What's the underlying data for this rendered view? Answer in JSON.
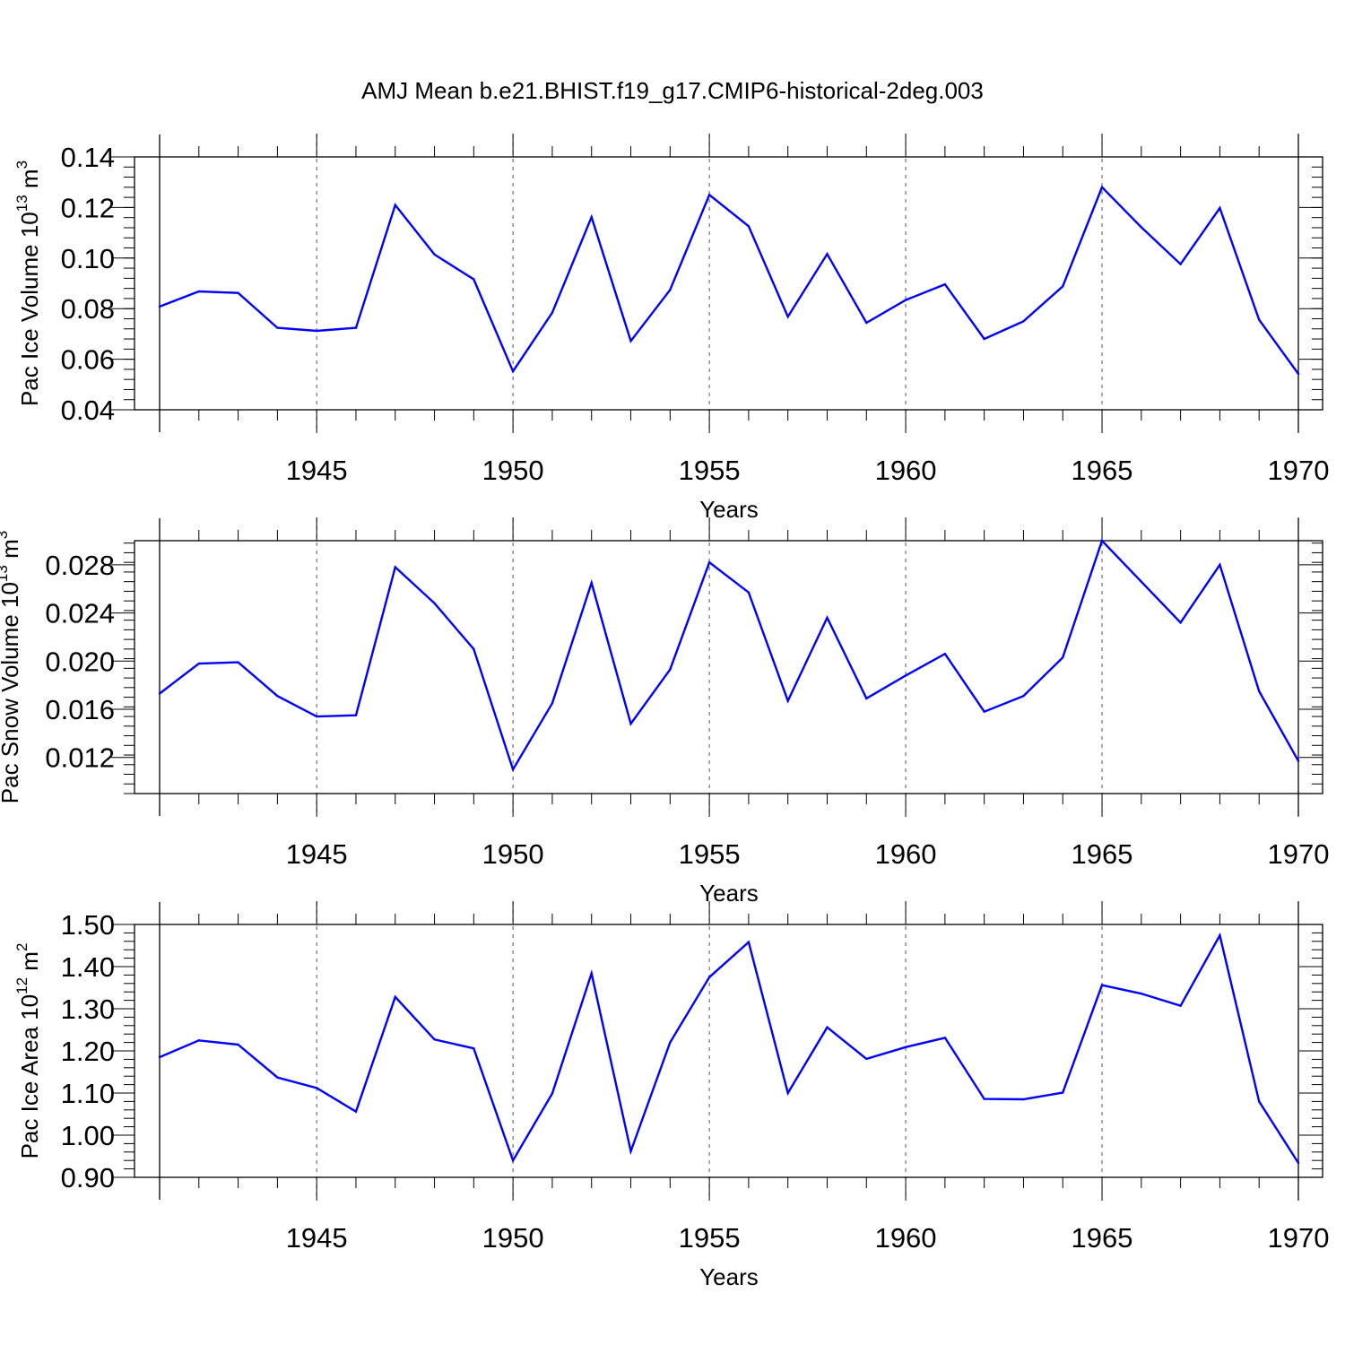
{
  "title": "AMJ Mean b.e21.BHIST.f19_g17.CMIP6-historical-2deg.003",
  "colors": {
    "line": "#0000ff",
    "axis": "#000000",
    "grid": "#555555",
    "background": "#ffffff"
  },
  "chart_data": [
    {
      "type": "line",
      "name": "pac-ice-volume",
      "ylabel": "Pac Ice Volume",
      "ylabel_unit_base": "10",
      "ylabel_unit_exp": "13",
      "ylabel_unit_tail": "m",
      "ylabel_unit_tail_exp": "3",
      "xlabel": "Years",
      "xlim": [
        1941,
        1970
      ],
      "ylim": [
        0.04,
        0.14
      ],
      "yticks": [
        0.04,
        0.06,
        0.08,
        0.1,
        0.12,
        0.14
      ],
      "ytick_labels": [
        "0.04",
        "0.06",
        "0.08",
        "0.10",
        "0.12",
        "0.14"
      ],
      "yminor_step": 0.004,
      "xticks": [
        1945,
        1950,
        1955,
        1960,
        1965,
        1970
      ],
      "xtick_labels": [
        "1945",
        "1950",
        "1955",
        "1960",
        "1965",
        "1970"
      ],
      "grid": "dashed vertical at major x ticks",
      "x": [
        1941,
        1942,
        1943,
        1944,
        1945,
        1946,
        1947,
        1948,
        1949,
        1950,
        1951,
        1952,
        1953,
        1954,
        1955,
        1956,
        1957,
        1958,
        1959,
        1960,
        1961,
        1962,
        1963,
        1964,
        1965,
        1966,
        1967,
        1968,
        1969,
        1970
      ],
      "series": [
        {
          "name": "Pac Ice Volume",
          "values": [
            0.0808,
            0.0868,
            0.0862,
            0.0724,
            0.0712,
            0.0724,
            0.121,
            0.1014,
            0.0916,
            0.0552,
            0.0784,
            0.1162,
            0.0672,
            0.0874,
            0.125,
            0.1126,
            0.0768,
            0.1016,
            0.0744,
            0.0834,
            0.0896,
            0.068,
            0.075,
            0.0888,
            0.128,
            0.1122,
            0.0976,
            0.1198,
            0.0756,
            0.0542
          ]
        }
      ]
    },
    {
      "type": "line",
      "name": "pac-snow-volume",
      "ylabel": "Pac Snow Volume",
      "ylabel_unit_base": "10",
      "ylabel_unit_exp": "13",
      "ylabel_unit_tail": "m",
      "ylabel_unit_tail_exp": "3",
      "xlabel": "Years",
      "xlim": [
        1941,
        1970
      ],
      "ylim": [
        0.009,
        0.03
      ],
      "yticks": [
        0.012,
        0.016,
        0.02,
        0.024,
        0.028
      ],
      "ytick_labels": [
        "0.012",
        "0.016",
        "0.020",
        "0.024",
        "0.028"
      ],
      "yminor_step": 0.0008,
      "xticks": [
        1945,
        1950,
        1955,
        1960,
        1965,
        1970
      ],
      "xtick_labels": [
        "1945",
        "1950",
        "1955",
        "1960",
        "1965",
        "1970"
      ],
      "grid": "dashed vertical at major x ticks",
      "x": [
        1941,
        1942,
        1943,
        1944,
        1945,
        1946,
        1947,
        1948,
        1949,
        1950,
        1951,
        1952,
        1953,
        1954,
        1955,
        1956,
        1957,
        1958,
        1959,
        1960,
        1961,
        1962,
        1963,
        1964,
        1965,
        1966,
        1967,
        1968,
        1969,
        1970
      ],
      "series": [
        {
          "name": "Pac Snow Volume",
          "values": [
            0.0173,
            0.0198,
            0.0199,
            0.0171,
            0.0154,
            0.0155,
            0.0278,
            0.0248,
            0.021,
            0.011,
            0.0165,
            0.0265,
            0.0148,
            0.0193,
            0.0282,
            0.0257,
            0.0167,
            0.0236,
            0.0169,
            0.0188,
            0.0206,
            0.0158,
            0.0171,
            0.0203,
            0.03,
            0.0266,
            0.0232,
            0.028,
            0.0175,
            0.0117
          ]
        }
      ]
    },
    {
      "type": "line",
      "name": "pac-ice-area",
      "ylabel": "Pac Ice Area",
      "ylabel_unit_base": "10",
      "ylabel_unit_exp": "12",
      "ylabel_unit_tail": "m",
      "ylabel_unit_tail_exp": "2",
      "xlabel": "Years",
      "xlim": [
        1941,
        1970
      ],
      "ylim": [
        0.9,
        1.5
      ],
      "yticks": [
        0.9,
        1.0,
        1.1,
        1.2,
        1.3,
        1.4,
        1.5
      ],
      "ytick_labels": [
        "0.90",
        "1.00",
        "1.10",
        "1.20",
        "1.30",
        "1.40",
        "1.50"
      ],
      "yminor_step": 0.02,
      "xticks": [
        1945,
        1950,
        1955,
        1960,
        1965,
        1970
      ],
      "xtick_labels": [
        "1945",
        "1950",
        "1955",
        "1960",
        "1965",
        "1970"
      ],
      "grid": "dashed vertical at major x ticks",
      "x": [
        1941,
        1942,
        1943,
        1944,
        1945,
        1946,
        1947,
        1948,
        1949,
        1950,
        1951,
        1952,
        1953,
        1954,
        1955,
        1956,
        1957,
        1958,
        1959,
        1960,
        1961,
        1962,
        1963,
        1964,
        1965,
        1966,
        1967,
        1968,
        1969,
        1970
      ],
      "series": [
        {
          "name": "Pac Ice Area",
          "values": [
            1.185,
            1.225,
            1.215,
            1.137,
            1.112,
            1.056,
            1.328,
            1.227,
            1.206,
            0.94,
            1.099,
            1.384,
            0.962,
            1.22,
            1.375,
            1.458,
            1.1,
            1.256,
            1.181,
            1.209,
            1.231,
            1.086,
            1.085,
            1.101,
            1.356,
            1.336,
            1.307,
            1.474,
            1.08,
            0.934
          ]
        }
      ]
    }
  ]
}
